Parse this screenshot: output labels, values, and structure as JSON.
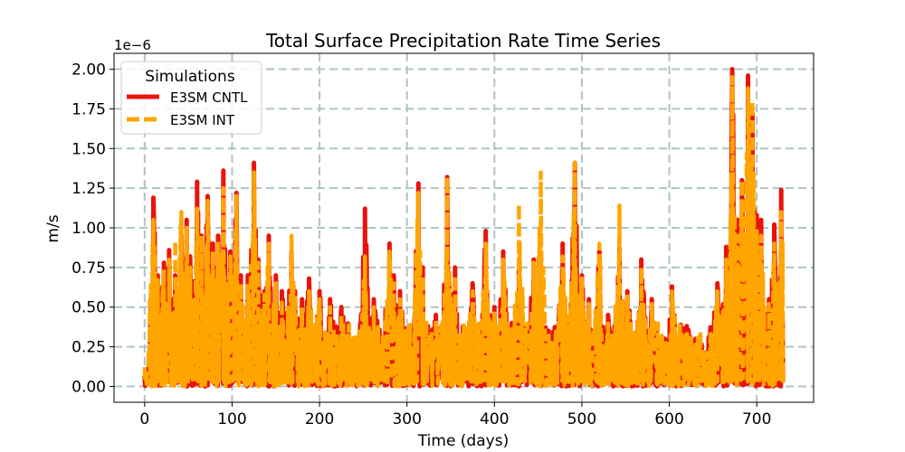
{
  "chart_data": {
    "type": "line",
    "title": "Total Surface Precipitation Rate Time Series",
    "xlabel": "Time (days)",
    "ylabel": "m/s",
    "offset_text": "1e−6",
    "scale": 1e-06,
    "xlim": [
      -35,
      765
    ],
    "ylim": [
      -0.1,
      2.1
    ],
    "xticks": [
      0,
      100,
      200,
      300,
      400,
      500,
      600,
      700
    ],
    "xtick_labels": [
      "0",
      "100",
      "200",
      "300",
      "400",
      "500",
      "600",
      "700"
    ],
    "yticks": [
      0,
      0.25,
      0.5,
      0.75,
      1.0,
      1.25,
      1.5,
      1.75,
      2.0
    ],
    "ytick_labels": [
      "0.00",
      "0.25",
      "0.50",
      "0.75",
      "1.00",
      "1.25",
      "1.50",
      "1.75",
      "2.00"
    ],
    "grid": true,
    "legend": {
      "title": "Simulations",
      "placement": "top-left"
    },
    "x_range_days": [
      0,
      730
    ],
    "series": [
      {
        "name": "E3SM CNTL",
        "color": "#e8140c",
        "linestyle": "solid",
        "peaks": [
          [
            2,
            0.05
          ],
          [
            10,
            1.19
          ],
          [
            15,
            0.7
          ],
          [
            22,
            0.78
          ],
          [
            28,
            0.86
          ],
          [
            35,
            0.7
          ],
          [
            42,
            0.95
          ],
          [
            48,
            1.05
          ],
          [
            52,
            0.82
          ],
          [
            60,
            1.29
          ],
          [
            65,
            0.95
          ],
          [
            72,
            1.2
          ],
          [
            78,
            0.9
          ],
          [
            84,
            0.95
          ],
          [
            90,
            1.36
          ],
          [
            98,
            0.85
          ],
          [
            105,
            1.22
          ],
          [
            110,
            0.7
          ],
          [
            118,
            0.7
          ],
          [
            125,
            1.41
          ],
          [
            130,
            0.8
          ],
          [
            137,
            0.6
          ],
          [
            142,
            0.95
          ],
          [
            150,
            0.7
          ],
          [
            157,
            0.6
          ],
          [
            168,
            0.85
          ],
          [
            172,
            0.6
          ],
          [
            180,
            0.55
          ],
          [
            188,
            0.68
          ],
          [
            200,
            0.6
          ],
          [
            212,
            0.55
          ],
          [
            225,
            0.5
          ],
          [
            240,
            0.3
          ],
          [
            252,
            1.12
          ],
          [
            262,
            0.55
          ],
          [
            280,
            0.9
          ],
          [
            285,
            0.7
          ],
          [
            292,
            0.6
          ],
          [
            313,
            1.28
          ],
          [
            318,
            0.75
          ],
          [
            333,
            0.45
          ],
          [
            346,
            1.32
          ],
          [
            355,
            0.75
          ],
          [
            375,
            0.65
          ],
          [
            390,
            0.98
          ],
          [
            400,
            0.5
          ],
          [
            410,
            0.85
          ],
          [
            420,
            0.4
          ],
          [
            428,
            0.78
          ],
          [
            445,
            0.8
          ],
          [
            453,
            0.77
          ],
          [
            462,
            0.35
          ],
          [
            478,
            0.9
          ],
          [
            485,
            0.3
          ],
          [
            492,
            1.41
          ],
          [
            500,
            0.7
          ],
          [
            508,
            0.55
          ],
          [
            520,
            0.85
          ],
          [
            530,
            0.45
          ],
          [
            543,
            0.87
          ],
          [
            552,
            0.6
          ],
          [
            568,
            0.8
          ],
          [
            580,
            0.55
          ],
          [
            595,
            0.3
          ],
          [
            603,
            0.63
          ],
          [
            620,
            0.38
          ],
          [
            630,
            0.3
          ],
          [
            640,
            0.2
          ],
          [
            655,
            0.65
          ],
          [
            665,
            0.88
          ],
          [
            672,
            2.0
          ],
          [
            678,
            1.05
          ],
          [
            683,
            1.3
          ],
          [
            690,
            1.96
          ],
          [
            695,
            1.72
          ],
          [
            700,
            1.08
          ],
          [
            705,
            1.05
          ],
          [
            714,
            0.55
          ],
          [
            720,
            1.02
          ],
          [
            725,
            0.6
          ],
          [
            728,
            1.24
          ],
          [
            730,
            0.1
          ]
        ]
      },
      {
        "name": "E3SM INT",
        "color": "#ffa500",
        "linestyle": "dashed",
        "peaks": [
          [
            2,
            0.05
          ],
          [
            10,
            1.05
          ],
          [
            15,
            0.67
          ],
          [
            22,
            0.74
          ],
          [
            28,
            0.8
          ],
          [
            35,
            0.92
          ],
          [
            42,
            1.1
          ],
          [
            48,
            1.0
          ],
          [
            52,
            0.75
          ],
          [
            60,
            1.12
          ],
          [
            65,
            0.95
          ],
          [
            72,
            1.17
          ],
          [
            78,
            0.85
          ],
          [
            84,
            0.9
          ],
          [
            90,
            1.25
          ],
          [
            98,
            0.82
          ],
          [
            105,
            1.2
          ],
          [
            110,
            0.65
          ],
          [
            118,
            0.65
          ],
          [
            125,
            1.35
          ],
          [
            130,
            0.78
          ],
          [
            137,
            0.58
          ],
          [
            142,
            0.9
          ],
          [
            150,
            0.65
          ],
          [
            157,
            0.55
          ],
          [
            168,
            0.95
          ],
          [
            172,
            0.58
          ],
          [
            180,
            0.5
          ],
          [
            188,
            0.6
          ],
          [
            200,
            0.55
          ],
          [
            212,
            0.5
          ],
          [
            225,
            0.45
          ],
          [
            240,
            0.3
          ],
          [
            252,
            0.82
          ],
          [
            262,
            0.5
          ],
          [
            280,
            0.85
          ],
          [
            285,
            0.65
          ],
          [
            292,
            0.55
          ],
          [
            313,
            1.22
          ],
          [
            318,
            0.7
          ],
          [
            333,
            0.42
          ],
          [
            346,
            1.32
          ],
          [
            355,
            0.7
          ],
          [
            375,
            0.6
          ],
          [
            390,
            0.9
          ],
          [
            400,
            0.48
          ],
          [
            410,
            0.8
          ],
          [
            420,
            0.38
          ],
          [
            428,
            1.15
          ],
          [
            445,
            0.78
          ],
          [
            453,
            1.35
          ],
          [
            462,
            0.32
          ],
          [
            478,
            0.82
          ],
          [
            485,
            0.28
          ],
          [
            492,
            1.41
          ],
          [
            500,
            0.68
          ],
          [
            508,
            0.52
          ],
          [
            520,
            0.9
          ],
          [
            530,
            0.42
          ],
          [
            543,
            1.14
          ],
          [
            552,
            0.58
          ],
          [
            568,
            0.75
          ],
          [
            580,
            0.52
          ],
          [
            595,
            0.28
          ],
          [
            603,
            0.6
          ],
          [
            620,
            0.35
          ],
          [
            630,
            0.28
          ],
          [
            640,
            0.2
          ],
          [
            655,
            0.6
          ],
          [
            665,
            0.8
          ],
          [
            672,
            1.95
          ],
          [
            678,
            0.95
          ],
          [
            683,
            1.3
          ],
          [
            690,
            1.88
          ],
          [
            695,
            1.8
          ],
          [
            700,
            0.98
          ],
          [
            705,
            0.95
          ],
          [
            714,
            0.52
          ],
          [
            720,
            0.9
          ],
          [
            725,
            0.58
          ],
          [
            728,
            1.1
          ],
          [
            730,
            0.1
          ]
        ]
      }
    ]
  }
}
